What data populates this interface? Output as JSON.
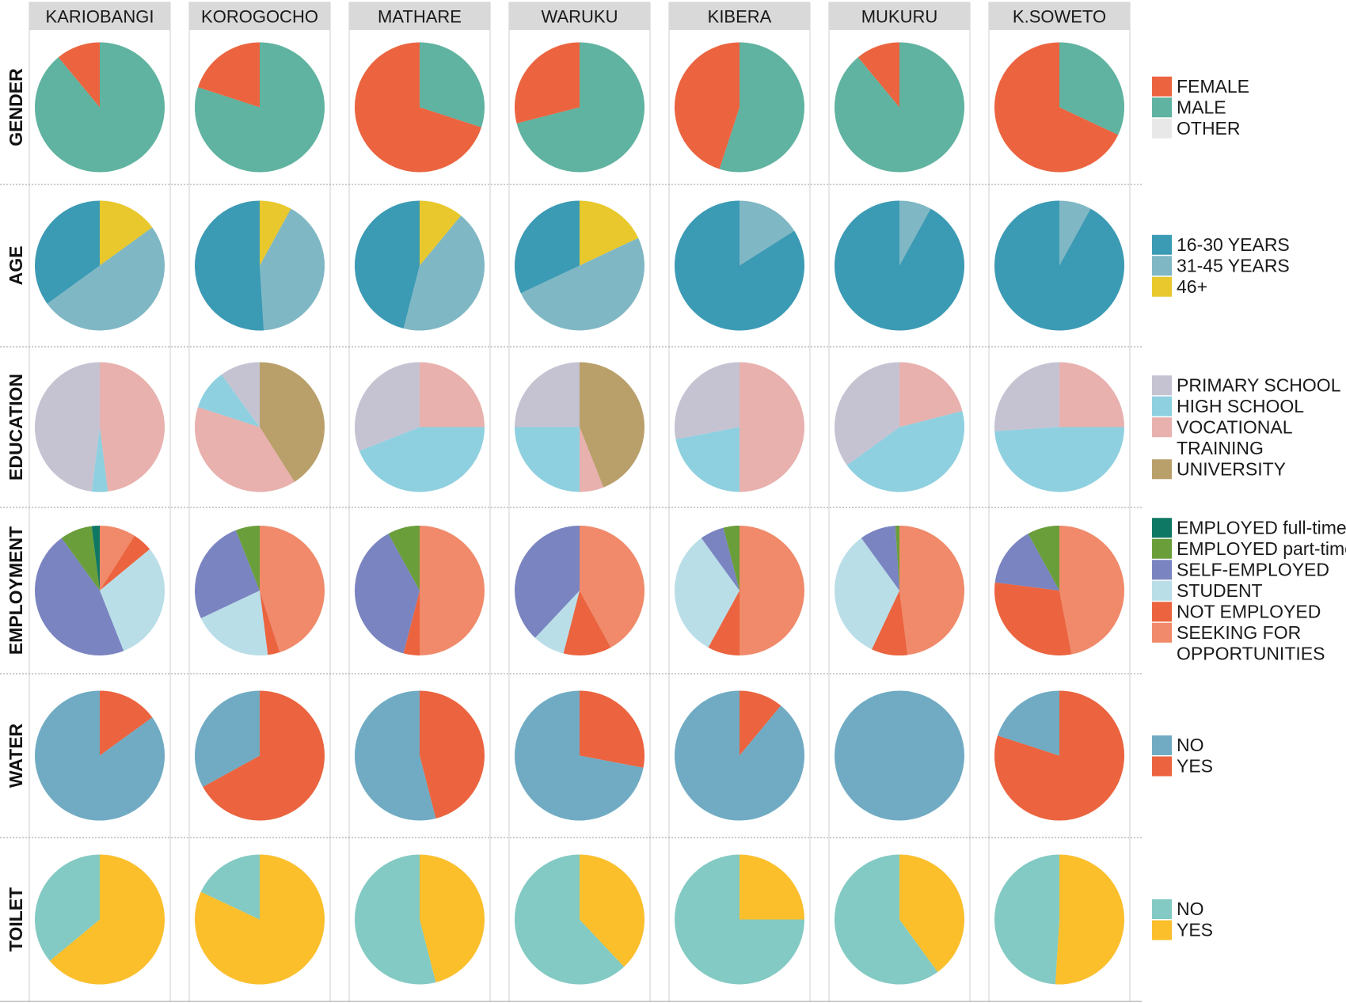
{
  "chart_data": {
    "type": "pie",
    "columns": [
      "KARIOBANGI",
      "KOROGOCHO",
      "MATHARE",
      "WARUKU",
      "KIBERA",
      "MUKURU",
      "K.SOWETO"
    ],
    "rows": [
      {
        "label": "GENDER",
        "categories": [
          "FEMALE",
          "MALE",
          "OTHER"
        ],
        "colors": [
          "#EB643F",
          "#5FB3A0",
          "#E8E8E8"
        ],
        "legend": [
          [
            "FEMALE"
          ],
          [
            "MALE"
          ],
          [
            "OTHER"
          ]
        ],
        "values": [
          [
            11,
            89,
            0
          ],
          [
            20,
            80,
            0
          ],
          [
            70,
            30,
            0
          ],
          [
            29,
            71,
            0
          ],
          [
            45,
            55,
            0
          ],
          [
            11,
            89,
            0
          ],
          [
            68,
            32,
            0
          ]
        ]
      },
      {
        "label": "AGE",
        "categories": [
          "16-30 YEARS",
          "31-45 YEARS",
          "46+"
        ],
        "colors": [
          "#3B9AB4",
          "#7FB7C4",
          "#E8C82C"
        ],
        "legend": [
          [
            "16-30 YEARS"
          ],
          [
            "31-45 YEARS"
          ],
          [
            "46+"
          ]
        ],
        "values": [
          [
            35,
            50,
            15
          ],
          [
            51,
            41,
            8
          ],
          [
            46,
            43,
            11
          ],
          [
            32,
            50,
            18
          ],
          [
            84,
            16,
            0
          ],
          [
            92,
            8,
            0
          ],
          [
            92,
            8,
            0
          ]
        ]
      },
      {
        "label": "EDUCATION",
        "categories": [
          "PRIMARY SCHOOL",
          "HIGH SCHOOL",
          "VOCATIONAL TRAINING",
          "UNIVERSITY"
        ],
        "colors": [
          "#C5C3D2",
          "#8ED0E0",
          "#E8B1AE",
          "#B9A06A"
        ],
        "legend": [
          [
            "PRIMARY SCHOOL"
          ],
          [
            "HIGH SCHOOL"
          ],
          [
            "VOCATIONAL",
            "TRAINING"
          ],
          [
            "UNIVERSITY"
          ]
        ],
        "values": [
          [
            48,
            4,
            48,
            0
          ],
          [
            10,
            10,
            39,
            41
          ],
          [
            31,
            44,
            25,
            0
          ],
          [
            25,
            25,
            6,
            44
          ],
          [
            28,
            22,
            50,
            0
          ],
          [
            35,
            44,
            21,
            0
          ],
          [
            26,
            49,
            25,
            0
          ]
        ]
      },
      {
        "label": "EMPLOYMENT",
        "categories": [
          "EMPLOYED full-time",
          "EMPLOYED part-time",
          "SELF-EMPLOYED",
          "STUDENT",
          "NOT EMPLOYED",
          "SEEKING FOR OPPORTUNITIES"
        ],
        "colors": [
          "#0F7864",
          "#6A9E3A",
          "#7A84C0",
          "#B9DEE8",
          "#EB643F",
          "#F08A6A"
        ],
        "legend": [
          [
            "EMPLOYED full-time"
          ],
          [
            "EMPLOYED part-time"
          ],
          [
            "SELF-EMPLOYED"
          ],
          [
            "STUDENT"
          ],
          [
            "NOT EMPLOYED"
          ],
          [
            "SEEKING FOR",
            "OPPORTUNITIES"
          ]
        ],
        "values": [
          [
            2,
            8,
            46,
            30,
            5,
            9
          ],
          [
            0,
            6,
            26,
            20,
            3,
            45
          ],
          [
            0,
            8,
            38,
            0,
            4,
            50
          ],
          [
            0,
            0,
            38,
            8,
            12,
            42
          ],
          [
            0,
            4,
            6,
            32,
            8,
            50
          ],
          [
            0,
            1,
            9,
            33,
            9,
            48
          ],
          [
            0,
            8,
            15,
            0,
            30,
            47
          ]
        ]
      },
      {
        "label": "WATER",
        "categories": [
          "NO",
          "YES"
        ],
        "colors": [
          "#70ABC3",
          "#EB643F"
        ],
        "legend": [
          [
            "NO"
          ],
          [
            "YES"
          ]
        ],
        "values": [
          [
            85,
            15
          ],
          [
            33,
            67
          ],
          [
            54,
            46
          ],
          [
            72,
            28
          ],
          [
            89,
            11
          ],
          [
            100,
            0
          ],
          [
            20,
            80
          ]
        ]
      },
      {
        "label": "TOILET",
        "categories": [
          "NO",
          "YES"
        ],
        "colors": [
          "#82CAC3",
          "#FBBF2C"
        ],
        "legend": [
          [
            "NO"
          ],
          [
            "YES"
          ]
        ],
        "values": [
          [
            36,
            64
          ],
          [
            18,
            82
          ],
          [
            54,
            46
          ],
          [
            62,
            38
          ],
          [
            75,
            25
          ],
          [
            60,
            40
          ],
          [
            49,
            51
          ]
        ]
      }
    ]
  }
}
